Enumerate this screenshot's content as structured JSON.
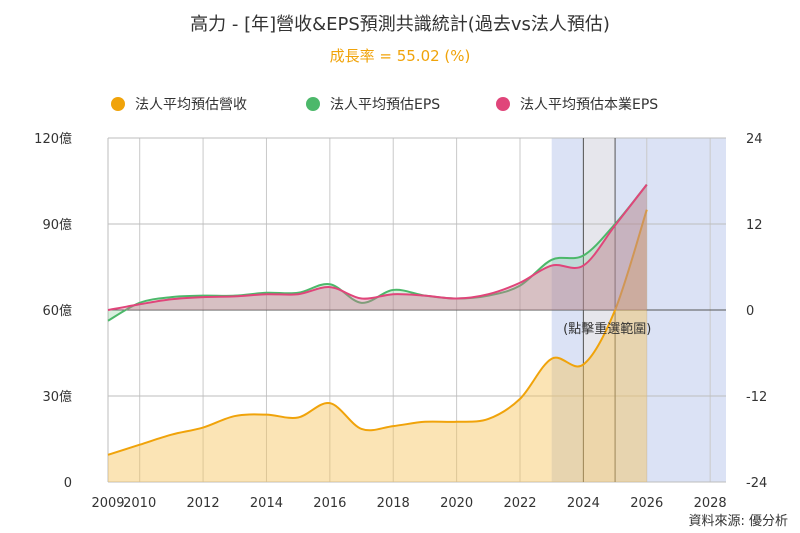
{
  "chart_data": {
    "type": "line",
    "title": "高力 - [年]營收&EPS預測共識統計(過去vs法人預估)",
    "subtitle": "成長率 = 55.02 (%)",
    "x_ticks": [
      "2009",
      "2010",
      "2012",
      "2014",
      "2016",
      "2018",
      "2020",
      "2022",
      "2024",
      "2026",
      "2028"
    ],
    "y_left_ticks": [
      "0",
      "30億",
      "60億",
      "90億",
      "120億"
    ],
    "y_right_ticks": [
      "-24",
      "-12",
      "0",
      "12",
      "24"
    ],
    "y_left_range": [
      0,
      120
    ],
    "y_right_range": [
      -24,
      24
    ],
    "x_range": [
      2009,
      2028.5
    ],
    "grid": true,
    "legend_position": "top",
    "annotation": "(點擊重選範圍)",
    "source": "資料來源: 優分析",
    "series": [
      {
        "name": "法人平均預估營收",
        "axis": "left",
        "color": "#f0a30a",
        "x": [
          2009,
          2010,
          2011,
          2012,
          2013,
          2014,
          2015,
          2016,
          2017,
          2018,
          2019,
          2020,
          2021,
          2022,
          2023,
          2024,
          2025,
          2026
        ],
        "y": [
          9.5,
          13,
          16.5,
          19,
          23,
          23.5,
          22.5,
          27.5,
          18.5,
          19.5,
          21,
          21,
          22,
          29,
          43,
          41,
          60,
          95
        ]
      },
      {
        "name": "法人平均預估EPS",
        "axis": "right",
        "color": "#4cb86a",
        "x": [
          2009,
          2010,
          2011,
          2012,
          2013,
          2014,
          2015,
          2016,
          2017,
          2018,
          2019,
          2020,
          2021,
          2022,
          2023,
          2024,
          2025,
          2026
        ],
        "y": [
          -1.5,
          1,
          1.8,
          2,
          2,
          2.4,
          2.4,
          3.6,
          1,
          2.8,
          2,
          1.6,
          2,
          3.4,
          7,
          7.6,
          12,
          17.5
        ]
      },
      {
        "name": "法人平均預估本業EPS",
        "axis": "right",
        "color": "#e0457a",
        "x": [
          2009,
          2010,
          2011,
          2012,
          2013,
          2014,
          2015,
          2016,
          2017,
          2018,
          2019,
          2020,
          2021,
          2022,
          2023,
          2024,
          2025,
          2026
        ],
        "y": [
          0,
          0.8,
          1.5,
          1.8,
          1.9,
          2.2,
          2.2,
          3.2,
          1.6,
          2.2,
          2,
          1.6,
          2.2,
          3.8,
          6.2,
          6.2,
          11.8,
          17.5
        ]
      }
    ],
    "shaded_ranges": [
      [
        2023,
        2028.5
      ]
    ],
    "highlight_range": [
      2024,
      2025
    ]
  }
}
